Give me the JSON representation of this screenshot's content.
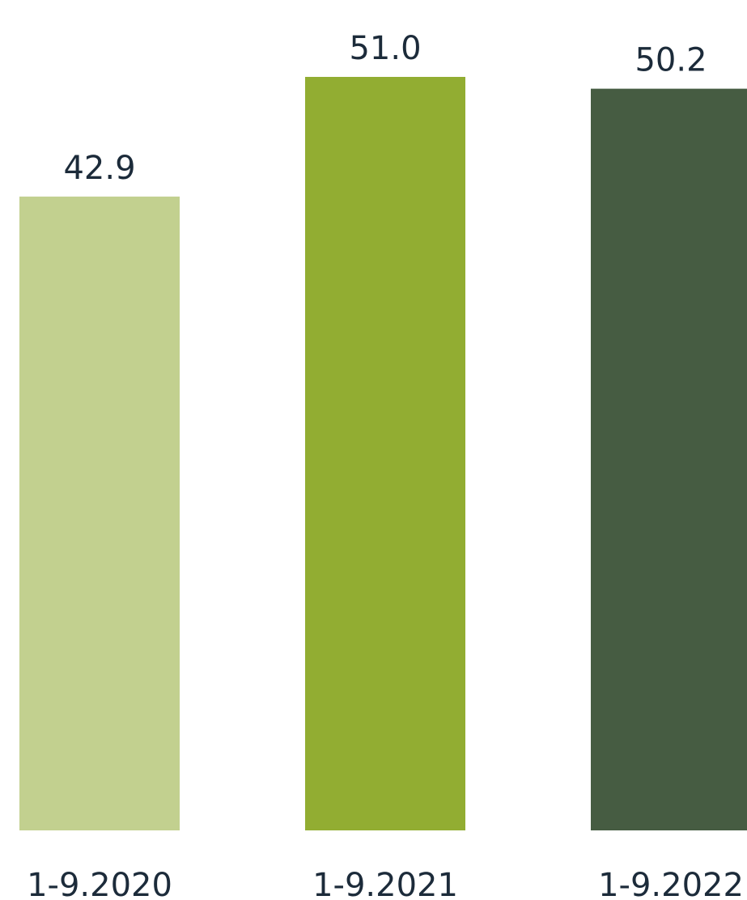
{
  "chart_data": {
    "type": "bar",
    "categories": [
      "1-9.2020",
      "1-9.2021",
      "1-9.2022"
    ],
    "values": [
      42.9,
      51.0,
      50.2
    ],
    "data_labels": [
      "42.9",
      "51.0",
      "50.2"
    ],
    "colors": [
      "#c2d08f",
      "#92ad32",
      "#465c42"
    ],
    "ylim": [
      0,
      51.0
    ],
    "grid": false,
    "legend": "none"
  }
}
